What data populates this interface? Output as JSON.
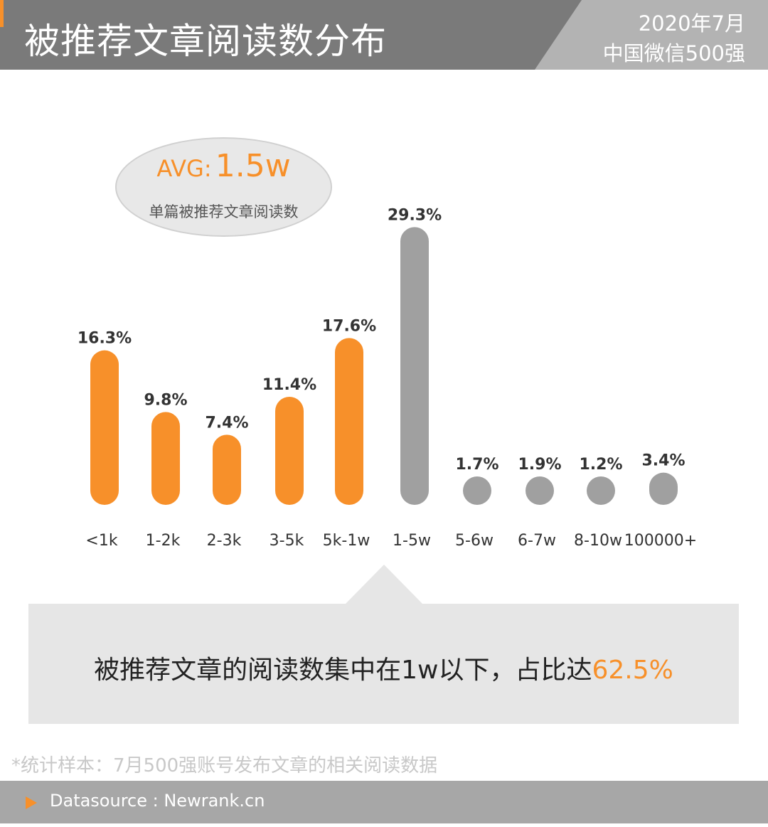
{
  "header": {
    "title": "被推荐文章阅读数分布",
    "subtitle_line1": "2020年7月",
    "subtitle_line2": "中国微信500强"
  },
  "avg": {
    "label": "AVG:",
    "value": "1.5w",
    "description": "单篇被推荐文章阅读数"
  },
  "colors": {
    "accent": "#f7902a",
    "gray_bar": "#a0a0a0",
    "header_dark": "#7a7a7a",
    "header_light": "#b3b3b3",
    "callout_bg": "#e6e6e6"
  },
  "chart_data": {
    "type": "bar",
    "categories": [
      "<1k",
      "1-2k",
      "2-3k",
      "3-5k",
      "5k-1w",
      "1-5w",
      "5-6w",
      "6-7w",
      "8-10w",
      "100000+"
    ],
    "values": [
      16.3,
      9.8,
      7.4,
      11.4,
      17.6,
      29.3,
      1.7,
      1.9,
      1.2,
      3.4
    ],
    "value_labels": [
      "16.3%",
      "9.8%",
      "7.4%",
      "11.4%",
      "17.6%",
      "29.3%",
      "1.7%",
      "1.9%",
      "1.2%",
      "3.4%"
    ],
    "highlight": [
      true,
      true,
      true,
      true,
      true,
      false,
      false,
      false,
      false,
      false
    ],
    "ylim": [
      0,
      30
    ],
    "title": "",
    "xlabel": "",
    "ylabel": "",
    "grid": false
  },
  "callout": {
    "text": "被推荐文章的阅读数集中在1w以下，占比达",
    "highlight": "62.5%"
  },
  "footnote": "*统计样本：7月500强账号发布文章的相关阅读数据",
  "footer": {
    "source": "Datasource : Newrank.cn"
  }
}
